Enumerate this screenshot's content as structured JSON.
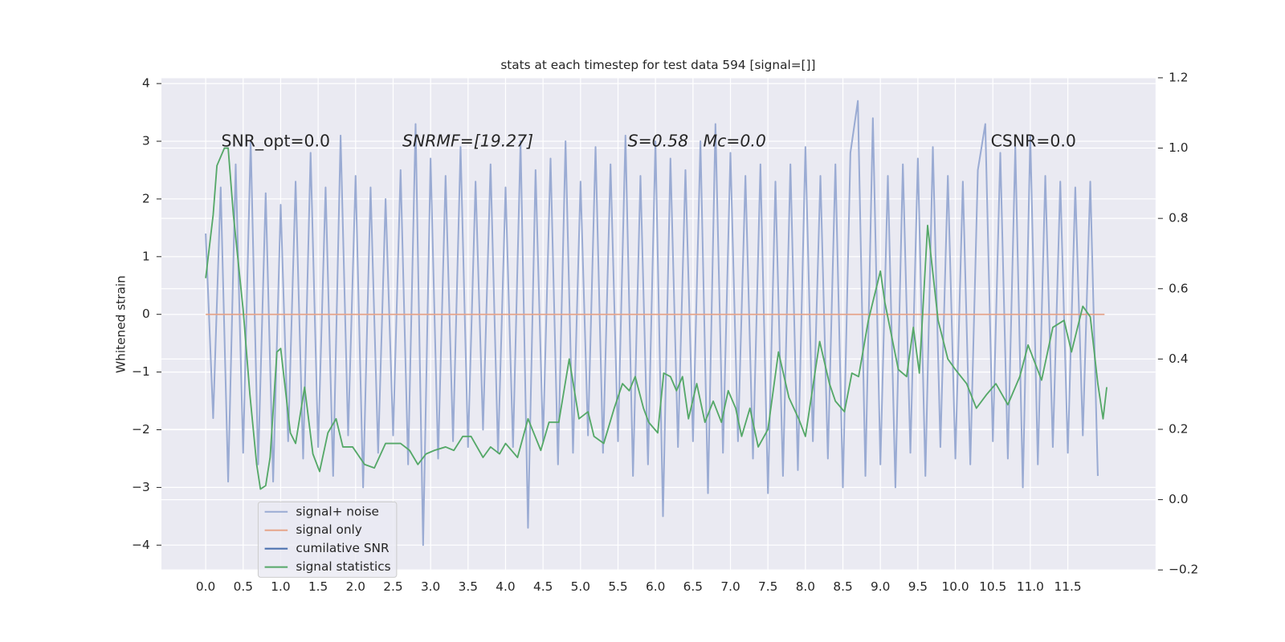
{
  "chart_data": {
    "type": "line",
    "title": "stats at each timestep for test data 594 [signal=[]]",
    "ylabel": "Whitened strain",
    "annotations": [
      "SNR_opt=0.0",
      "SNRMF=[19.27]",
      "S=0.58",
      "Mc=0.0",
      "CSNR=0.0"
    ],
    "xlim": [
      -0.59,
      12.67
    ],
    "ylim": [
      -4.43,
      4.1
    ],
    "y2lim": [
      -0.2,
      1.2
    ],
    "xticks": [
      {
        "value": 0,
        "label": "0.0"
      },
      0.5,
      {
        "value": 1,
        "label": "1.0"
      },
      1.5,
      {
        "value": 2,
        "label": "2.0"
      },
      2.5,
      {
        "value": 3,
        "label": "3.0"
      },
      3.5,
      {
        "value": 4,
        "label": "4.0"
      },
      4.5,
      {
        "value": 5,
        "label": "5.0"
      },
      5.5,
      {
        "value": 6,
        "label": "6.0"
      },
      6.5,
      {
        "value": 7,
        "label": "7.0"
      },
      7.5,
      {
        "value": 8,
        "label": "8.0"
      },
      8.5,
      {
        "value": 9,
        "label": "9.0"
      },
      9.5,
      {
        "value": 10,
        "label": "10.0"
      },
      10.5,
      {
        "value": 11,
        "label": "11.0"
      },
      11.5
    ],
    "yticks": [
      {
        "value": -4,
        "label": "−4"
      },
      {
        "value": -3,
        "label": "−3"
      },
      {
        "value": -2,
        "label": "−2"
      },
      {
        "value": -1,
        "label": "−1"
      },
      0,
      1,
      2,
      3,
      4
    ],
    "y2ticks": [
      {
        "value": -0.2,
        "label": "−0.2"
      },
      {
        "value": 0,
        "label": "0.0"
      },
      0.2,
      0.4,
      0.6,
      0.8,
      {
        "value": 1,
        "label": "1.0"
      },
      1.2
    ],
    "grid": true,
    "legend": "lower left",
    "series": [
      {
        "name": "signal+ noise",
        "color": "#9aabd3",
        "x": [
          0,
          0.1,
          0.2,
          0.3,
          0.4,
          0.5,
          0.6,
          0.7,
          0.8,
          0.9,
          1,
          1.1,
          1.2,
          1.3,
          1.4,
          1.5,
          1.6,
          1.7,
          1.8,
          1.9,
          2,
          2.1,
          2.2,
          2.3,
          2.4,
          2.5,
          2.6,
          2.7,
          2.8,
          2.9,
          3,
          3.1,
          3.2,
          3.3,
          3.4,
          3.5,
          3.6,
          3.7,
          3.8,
          3.9,
          4,
          4.1,
          4.2,
          4.3,
          4.4,
          4.5,
          4.6,
          4.7,
          4.8,
          4.9,
          5,
          5.1,
          5.2,
          5.3,
          5.4,
          5.5,
          5.6,
          5.7,
          5.8,
          5.9,
          6,
          6.1,
          6.2,
          6.3,
          6.4,
          6.5,
          6.6,
          6.7,
          6.8,
          6.9,
          7,
          7.1,
          7.2,
          7.3,
          7.4,
          7.5,
          7.6,
          7.7,
          7.8,
          7.9,
          8,
          8.1,
          8.2,
          8.3,
          8.4,
          8.5,
          8.6,
          8.7,
          8.8,
          8.9,
          9,
          9.1,
          9.2,
          9.3,
          9.4,
          9.5,
          9.6,
          9.7,
          9.8,
          9.9,
          10,
          10.1,
          10.2,
          10.3,
          10.4,
          10.5,
          10.6,
          10.7,
          10.8,
          10.9,
          11,
          11.1,
          11.2,
          11.3,
          11.4,
          11.5,
          11.6,
          11.7,
          11.8,
          11.9
        ],
        "values": [
          1.4,
          -1.8,
          2.2,
          -2.9,
          2.6,
          -2.4,
          3.0,
          -2.6,
          2.1,
          -2.9,
          1.9,
          -2.2,
          2.3,
          -2.5,
          2.8,
          -2.3,
          2.2,
          -2.8,
          3.1,
          -2.1,
          2.4,
          -3.0,
          2.2,
          -2.4,
          2.0,
          -2.1,
          2.5,
          -2.6,
          3.3,
          -4.0,
          2.7,
          -2.5,
          2.4,
          -2.2,
          2.9,
          -2.3,
          2.3,
          -2.0,
          2.6,
          -2.4,
          2.2,
          -2.3,
          3.0,
          -3.7,
          2.5,
          -2.2,
          2.7,
          -2.6,
          3.0,
          -2.4,
          2.3,
          -2.1,
          2.9,
          -2.4,
          2.6,
          -2.2,
          3.1,
          -2.8,
          2.4,
          -2.6,
          3.0,
          -3.5,
          2.7,
          -2.3,
          2.5,
          -2.2,
          3.0,
          -3.1,
          3.3,
          -2.4,
          2.8,
          -2.2,
          2.4,
          -2.5,
          2.6,
          -3.1,
          2.3,
          -2.8,
          2.6,
          -2.7,
          2.9,
          -2.2,
          2.4,
          -2.5,
          2.6,
          -3.0,
          2.8,
          3.7,
          -2.8,
          3.4,
          -2.6,
          2.4,
          -3.0,
          2.6,
          -2.4,
          2.7,
          -2.8,
          2.9,
          -2.3,
          2.4,
          -2.5,
          2.3,
          -2.6,
          2.5,
          3.3,
          -2.2,
          2.8,
          -2.5,
          2.9,
          -3.0,
          3.1,
          -2.6,
          2.4,
          -2.3,
          2.3,
          -2.4,
          2.2,
          -2.1,
          2.3,
          -2.8
        ]
      },
      {
        "name": "signal only",
        "color": "#e6a58a",
        "x": [
          0,
          11.99
        ],
        "values": [
          0,
          0
        ]
      },
      {
        "name": "cumilative SNR",
        "color": "#4c72b0",
        "x": [],
        "values": []
      },
      {
        "name": "signal statistics",
        "color": "#55a868",
        "axis": "y2",
        "x": [
          0,
          0.1,
          0.15,
          0.25,
          0.3,
          0.37,
          0.5,
          0.59,
          0.68,
          0.73,
          0.8,
          0.86,
          0.95,
          1,
          1.13,
          1.2,
          1.32,
          1.43,
          1.52,
          1.63,
          1.74,
          1.83,
          1.96,
          2.12,
          2.25,
          2.4,
          2.6,
          2.72,
          2.83,
          2.94,
          3.05,
          3.2,
          3.31,
          3.43,
          3.54,
          3.7,
          3.8,
          3.92,
          4,
          4.16,
          4.3,
          4.47,
          4.58,
          4.71,
          4.85,
          4.98,
          5.1,
          5.18,
          5.31,
          5.45,
          5.56,
          5.65,
          5.73,
          5.84,
          5.91,
          6.03,
          6.11,
          6.2,
          6.28,
          6.36,
          6.44,
          6.55,
          6.66,
          6.77,
          6.88,
          6.97,
          7.07,
          7.15,
          7.26,
          7.37,
          7.5,
          7.64,
          7.78,
          7.91,
          8,
          8.19,
          8.32,
          8.4,
          8.52,
          8.62,
          8.71,
          8.84,
          9,
          9.06,
          9.24,
          9.35,
          9.44,
          9.52,
          9.63,
          9.77,
          9.9,
          10,
          10.15,
          10.28,
          10.42,
          10.54,
          10.7,
          10.86,
          10.97,
          11.15,
          11.3,
          11.45,
          11.55,
          11.7,
          11.8,
          11.9,
          11.97,
          12.02
        ],
        "values": [
          0.63,
          0.81,
          0.95,
          1.0,
          1.0,
          0.81,
          0.54,
          0.3,
          0.1,
          0.03,
          0.04,
          0.12,
          0.42,
          0.43,
          0.19,
          0.16,
          0.32,
          0.13,
          0.08,
          0.19,
          0.23,
          0.15,
          0.15,
          0.1,
          0.09,
          0.16,
          0.16,
          0.14,
          0.1,
          0.13,
          0.14,
          0.15,
          0.14,
          0.18,
          0.18,
          0.12,
          0.15,
          0.13,
          0.16,
          0.12,
          0.23,
          0.14,
          0.22,
          0.22,
          0.4,
          0.23,
          0.25,
          0.18,
          0.16,
          0.26,
          0.33,
          0.31,
          0.35,
          0.26,
          0.22,
          0.19,
          0.36,
          0.35,
          0.31,
          0.35,
          0.23,
          0.33,
          0.22,
          0.28,
          0.22,
          0.31,
          0.26,
          0.18,
          0.26,
          0.15,
          0.2,
          0.42,
          0.29,
          0.23,
          0.18,
          0.45,
          0.33,
          0.28,
          0.25,
          0.36,
          0.35,
          0.51,
          0.65,
          0.56,
          0.37,
          0.35,
          0.49,
          0.36,
          0.78,
          0.51,
          0.4,
          0.37,
          0.33,
          0.26,
          0.3,
          0.33,
          0.27,
          0.35,
          0.44,
          0.34,
          0.49,
          0.51,
          0.42,
          0.55,
          0.52,
          0.33,
          0.23,
          0.32
        ]
      }
    ]
  }
}
